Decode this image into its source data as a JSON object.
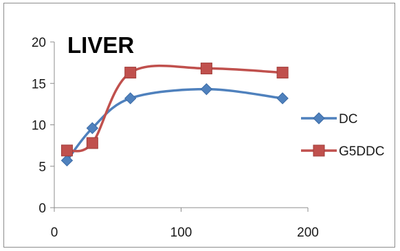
{
  "chart_data": {
    "type": "line",
    "title": "LIVER",
    "xlabel": "",
    "ylabel": "",
    "xlim": [
      0,
      200
    ],
    "ylim": [
      0,
      20
    ],
    "x_ticks": [
      0,
      100,
      200
    ],
    "y_ticks": [
      0,
      5,
      10,
      15,
      20
    ],
    "grid": false,
    "legend_position": "right",
    "smooth": true,
    "series": [
      {
        "name": "DC",
        "color": "#4f81bd",
        "marker": "diamond",
        "x": [
          10,
          30,
          60,
          120,
          180
        ],
        "y": [
          5.7,
          9.6,
          13.2,
          14.3,
          13.2
        ]
      },
      {
        "name": "G5DDC",
        "color": "#c0504d",
        "marker": "square",
        "x": [
          10,
          30,
          60,
          120,
          180
        ],
        "y": [
          6.9,
          7.8,
          16.3,
          16.8,
          16.3
        ]
      }
    ]
  }
}
